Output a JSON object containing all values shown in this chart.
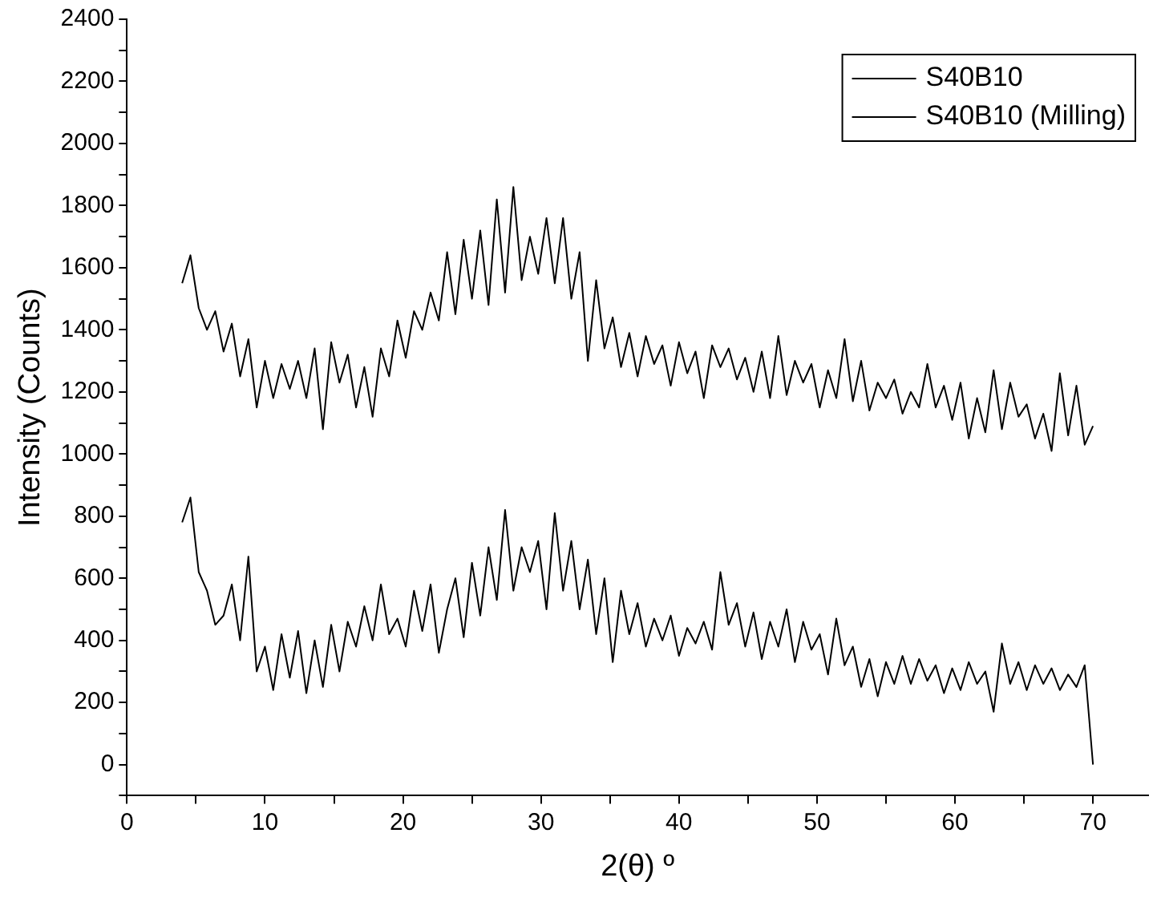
{
  "chart_data": {
    "type": "line",
    "xlabel": "2(θ) º",
    "ylabel": "Intensity (Counts)",
    "x": [
      4.0,
      4.6,
      5.2,
      5.8,
      6.4,
      7.0,
      7.6,
      8.2,
      8.8,
      9.4,
      10.0,
      10.6,
      11.2,
      11.8,
      12.4,
      13.0,
      13.6,
      14.2,
      14.8,
      15.4,
      16.0,
      16.6,
      17.2,
      17.8,
      18.4,
      19.0,
      19.6,
      20.2,
      20.8,
      21.4,
      22.0,
      22.6,
      23.2,
      23.8,
      24.4,
      25.0,
      25.6,
      26.2,
      26.8,
      27.4,
      28.0,
      28.6,
      29.2,
      29.8,
      30.4,
      31.0,
      31.6,
      32.2,
      32.8,
      33.4,
      34.0,
      34.6,
      35.2,
      35.8,
      36.4,
      37.0,
      37.6,
      38.2,
      38.8,
      39.4,
      40.0,
      40.6,
      41.2,
      41.8,
      42.4,
      43.0,
      43.6,
      44.2,
      44.8,
      45.4,
      46.0,
      46.6,
      47.2,
      47.8,
      48.4,
      49.0,
      49.6,
      50.2,
      50.8,
      51.4,
      52.0,
      52.6,
      53.2,
      53.8,
      54.4,
      55.0,
      55.6,
      56.2,
      56.8,
      57.4,
      58.0,
      58.6,
      59.2,
      59.8,
      60.4,
      61.0,
      61.6,
      62.2,
      62.8,
      63.4,
      64.0,
      64.6,
      65.2,
      65.8,
      66.4,
      67.0,
      67.6,
      68.2,
      68.8,
      69.4,
      70.0
    ],
    "series": [
      {
        "name": "S40B10",
        "color": "#000000",
        "values": [
          780,
          860,
          620,
          560,
          450,
          480,
          580,
          400,
          670,
          300,
          380,
          240,
          420,
          280,
          430,
          230,
          400,
          250,
          450,
          300,
          460,
          380,
          510,
          400,
          580,
          420,
          470,
          380,
          560,
          430,
          580,
          360,
          500,
          600,
          410,
          650,
          480,
          700,
          530,
          820,
          560,
          700,
          620,
          720,
          500,
          810,
          560,
          720,
          500,
          660,
          420,
          600,
          330,
          560,
          420,
          520,
          380,
          470,
          400,
          480,
          350,
          440,
          390,
          460,
          370,
          620,
          450,
          520,
          380,
          490,
          340,
          460,
          380,
          500,
          330,
          460,
          370,
          420,
          290,
          470,
          320,
          380,
          250,
          340,
          220,
          330,
          260,
          350,
          260,
          340,
          270,
          320,
          230,
          310,
          240,
          330,
          260,
          300,
          170,
          390,
          260,
          330,
          240,
          320,
          260,
          310,
          240,
          290,
          250,
          320,
          0
        ]
      },
      {
        "name": "S40B10 (Milling)",
        "color": "#000000",
        "values": [
          1550,
          1640,
          1470,
          1400,
          1460,
          1330,
          1420,
          1250,
          1370,
          1150,
          1300,
          1180,
          1290,
          1210,
          1300,
          1180,
          1340,
          1080,
          1360,
          1230,
          1320,
          1150,
          1280,
          1120,
          1340,
          1250,
          1430,
          1310,
          1460,
          1400,
          1520,
          1430,
          1650,
          1450,
          1690,
          1500,
          1720,
          1480,
          1820,
          1520,
          1860,
          1560,
          1700,
          1580,
          1760,
          1550,
          1760,
          1500,
          1650,
          1300,
          1560,
          1340,
          1440,
          1280,
          1390,
          1250,
          1380,
          1290,
          1350,
          1220,
          1360,
          1260,
          1330,
          1180,
          1350,
          1280,
          1340,
          1240,
          1310,
          1200,
          1330,
          1180,
          1380,
          1190,
          1300,
          1230,
          1290,
          1150,
          1270,
          1180,
          1370,
          1170,
          1300,
          1140,
          1230,
          1180,
          1240,
          1130,
          1200,
          1150,
          1290,
          1150,
          1220,
          1110,
          1230,
          1050,
          1180,
          1070,
          1270,
          1080,
          1230,
          1120,
          1160,
          1050,
          1130,
          1010,
          1260,
          1060,
          1220,
          1030,
          1090
        ]
      }
    ],
    "xlim": [
      0,
      74
    ],
    "xticks": [
      0,
      {
        "value": 5,
        "label": null
      },
      10,
      {
        "value": 15,
        "label": null
      },
      20,
      {
        "value": 25,
        "label": null
      },
      30,
      {
        "value": 35,
        "label": null
      },
      40,
      {
        "value": 45,
        "label": null
      },
      50,
      {
        "value": 55,
        "label": null
      },
      60,
      {
        "value": 65,
        "label": null
      },
      70
    ],
    "ylim": [
      -100,
      2400
    ],
    "yticks": [
      {
        "value": -100,
        "label": null
      },
      0,
      {
        "value": 100,
        "label": null
      },
      200,
      {
        "value": 300,
        "label": null
      },
      400,
      {
        "value": 500,
        "label": null
      },
      600,
      {
        "value": 700,
        "label": null
      },
      800,
      {
        "value": 900,
        "label": null
      },
      1000,
      {
        "value": 1100,
        "label": null
      },
      1200,
      {
        "value": 1300,
        "label": null
      },
      1400,
      {
        "value": 1500,
        "label": null
      },
      1600,
      {
        "value": 1700,
        "label": null
      },
      1800,
      {
        "value": 1900,
        "label": null
      },
      2000,
      {
        "value": 2100,
        "label": null
      },
      2200,
      {
        "value": 2300,
        "label": null
      },
      2400
    ],
    "legend": "top right",
    "grid": false,
    "marker": "none",
    "line_style": "solid"
  }
}
